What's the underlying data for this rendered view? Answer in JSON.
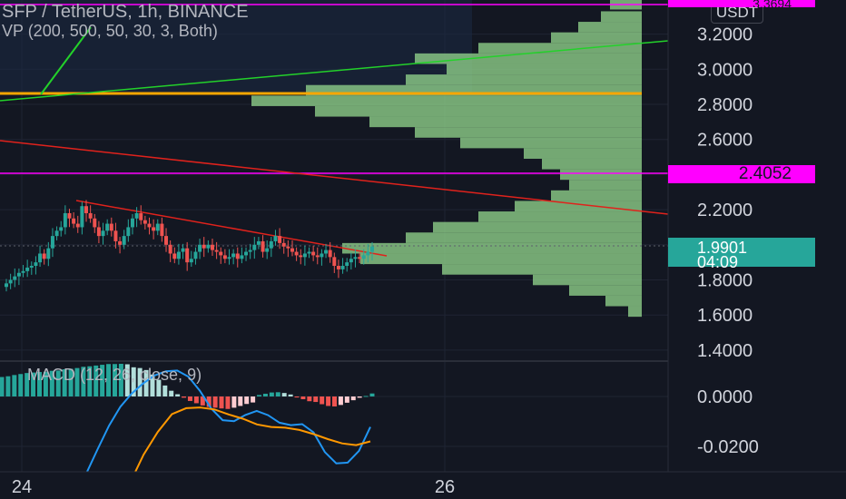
{
  "header": {
    "title": "SFP / TetherUS, 1h, BINANCE",
    "volume_profile_label": "VP (200, 500, 50, 30, 3, Both)",
    "currency_button": "USDT"
  },
  "macd": {
    "label": "MACD (12, 26, close, 9)"
  },
  "price_tags": {
    "top_line": "3.3694",
    "alert_line": "2.4052",
    "last_price": "1.9901",
    "countdown": "04:09"
  },
  "colors": {
    "background": "#131722",
    "bull": "#26a69a",
    "bear": "#ef5350",
    "volume_profile": "#8fd18a",
    "horizontal_line": "#ff00ff",
    "level_line": "#f7a600",
    "trend_red": "#e0221c",
    "trend_green": "#23d12a",
    "macd_line": "#2196f3",
    "signal_line": "#ff9800"
  },
  "chart_data": [
    {
      "type": "candlestick",
      "title": "SFP / TetherUS, 1h, BINANCE",
      "x_tick_labels": [
        "24",
        "26"
      ],
      "y_tick_labels": [
        "3.2000",
        "3.0000",
        "2.8000",
        "2.6000",
        "2.4000",
        "2.2000",
        "1.8000",
        "1.6000",
        "1.4000"
      ],
      "ylim": [
        1.4,
        3.4
      ],
      "grid": true,
      "closes": [
        1.78,
        1.8,
        1.82,
        1.84,
        1.85,
        1.87,
        1.88,
        1.9,
        1.95,
        1.92,
        1.98,
        2.05,
        2.08,
        2.1,
        2.18,
        2.15,
        2.12,
        2.1,
        2.22,
        2.18,
        2.15,
        2.1,
        2.05,
        2.08,
        2.12,
        2.08,
        2.02,
        2.0,
        2.05,
        2.1,
        2.15,
        2.18,
        2.14,
        2.12,
        2.1,
        2.08,
        2.12,
        2.05,
        2.0,
        1.95,
        1.92,
        1.96,
        1.98,
        1.9,
        1.92,
        1.96,
        2.0,
        1.98,
        2.0,
        1.97,
        1.96,
        1.94,
        1.92,
        1.93,
        1.95,
        1.92,
        1.94,
        1.96,
        1.97,
        2.0,
        2.02,
        1.96,
        1.98,
        2.02,
        2.05,
        2.01,
        1.99,
        1.98,
        1.96,
        1.94,
        1.93,
        1.95,
        1.96,
        1.94,
        1.93,
        1.95,
        1.97,
        1.93,
        1.88,
        1.86,
        1.88,
        1.9,
        1.92,
        1.93,
        1.92,
        1.94,
        1.96,
        1.99
      ],
      "volume_profile": [
        {
          "price": 3.37,
          "volume": 7
        },
        {
          "price": 3.3,
          "volume": 9
        },
        {
          "price": 3.24,
          "volume": 14
        },
        {
          "price": 3.18,
          "volume": 20
        },
        {
          "price": 3.12,
          "volume": 36
        },
        {
          "price": 3.06,
          "volume": 50
        },
        {
          "price": 3.0,
          "volume": 43
        },
        {
          "price": 2.94,
          "volume": 52
        },
        {
          "price": 2.88,
          "volume": 74
        },
        {
          "price": 2.82,
          "volume": 86
        },
        {
          "price": 2.76,
          "volume": 72
        },
        {
          "price": 2.7,
          "volume": 60
        },
        {
          "price": 2.64,
          "volume": 50
        },
        {
          "price": 2.58,
          "volume": 40
        },
        {
          "price": 2.52,
          "volume": 26
        },
        {
          "price": 2.46,
          "volume": 22
        },
        {
          "price": 2.4,
          "volume": 18
        },
        {
          "price": 2.34,
          "volume": 16
        },
        {
          "price": 2.28,
          "volume": 20
        },
        {
          "price": 2.22,
          "volume": 28
        },
        {
          "price": 2.16,
          "volume": 36
        },
        {
          "price": 2.1,
          "volume": 46
        },
        {
          "price": 2.04,
          "volume": 52
        },
        {
          "price": 1.98,
          "volume": 66
        },
        {
          "price": 1.92,
          "volume": 62
        },
        {
          "price": 1.86,
          "volume": 44
        },
        {
          "price": 1.8,
          "volume": 24
        },
        {
          "price": 1.74,
          "volume": 16
        },
        {
          "price": 1.68,
          "volume": 8
        },
        {
          "price": 1.62,
          "volume": 3
        }
      ]
    },
    {
      "type": "bar",
      "title": "MACD (12, 26, close, 9)",
      "y_tick_labels": [
        "0.0000",
        "-0.0200"
      ],
      "ylim": [
        -0.04,
        0.016
      ],
      "histogram": [
        0.0078,
        0.0081,
        0.0086,
        0.009,
        0.0094,
        0.0096,
        0.0098,
        0.0099,
        0.0103,
        0.0104,
        0.0109,
        0.0111,
        0.0114,
        0.0119,
        0.0121,
        0.0124,
        0.0127,
        0.013,
        0.013,
        0.0131,
        0.0129,
        0.0117,
        0.0114,
        0.0106,
        0.0088,
        0.0067,
        0.0044,
        0.0023,
        0.0009,
        -0.0005,
        -0.0018,
        -0.0027,
        -0.0036,
        -0.0042,
        -0.0045,
        -0.0048,
        -0.005,
        -0.0045,
        -0.0038,
        -0.003,
        -0.0024,
        0.0006,
        0.0011,
        0.0016,
        0.0017,
        0.0014,
        0.0008,
        -0.0004,
        -0.0011,
        -0.0019,
        -0.0022,
        -0.0031,
        -0.0038,
        -0.004,
        -0.0034,
        -0.0025,
        -0.0015,
        -0.0005,
        0.0002,
        0.0012
      ],
      "macd_line": [
        -0.0401,
        -0.0374,
        -0.0309,
        -0.0211,
        -0.0117,
        -0.0041,
        0.0012,
        0.0052,
        0.0084,
        0.0101,
        0.0104,
        0.0079,
        0.0023,
        -0.0048,
        -0.0095,
        -0.0099,
        -0.0074,
        -0.0058,
        -0.0075,
        -0.0105,
        -0.0115,
        -0.0111,
        -0.0144,
        -0.0223,
        -0.0268,
        -0.0265,
        -0.0218,
        -0.0122
      ],
      "signal_line": [
        -0.0405,
        -0.0351,
        -0.0233,
        -0.0142,
        -0.0071,
        -0.0047,
        -0.0044,
        -0.0052,
        -0.0072,
        -0.0089,
        -0.0112,
        -0.0122,
        -0.0125,
        -0.0134,
        -0.0151,
        -0.0171,
        -0.0188,
        -0.0195,
        -0.018
      ]
    }
  ]
}
